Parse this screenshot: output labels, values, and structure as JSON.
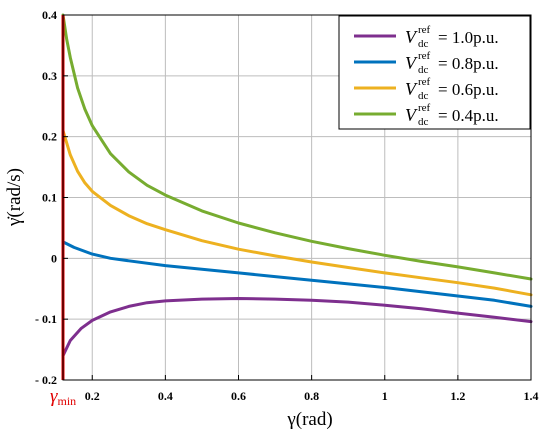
{
  "chart_data": {
    "type": "line",
    "xlabel": "γ(rad)",
    "ylabel": "γ̇(rad/s)",
    "xlim": [
      0.12,
      1.4
    ],
    "ylim": [
      -0.2,
      0.4
    ],
    "grid": true,
    "legend_position": "top-right",
    "x_ticks": [
      {
        "value": 0.2,
        "label": "0.2"
      },
      {
        "value": 0.4,
        "label": "0.4"
      },
      {
        "value": 0.6,
        "label": "0.6"
      },
      {
        "value": 0.8,
        "label": "0.8"
      },
      {
        "value": 1.0,
        "label": "1"
      },
      {
        "value": 1.2,
        "label": "1.2"
      },
      {
        "value": 1.4,
        "label": "1.4"
      }
    ],
    "y_ticks": [
      {
        "value": -0.2,
        "label": "- 0.2"
      },
      {
        "value": -0.1,
        "label": "- 0.1"
      },
      {
        "value": 0.0,
        "label": "0"
      },
      {
        "value": 0.1,
        "label": "0.1"
      },
      {
        "value": 0.2,
        "label": "0.2"
      },
      {
        "value": 0.3,
        "label": "0.3"
      },
      {
        "value": 0.4,
        "label": "0.4"
      }
    ],
    "gamma_min": {
      "value": 0.12,
      "symbol": "γ",
      "subscript": "min",
      "color": "#e00000"
    },
    "series": [
      {
        "name": "1.0p.u.",
        "legend_var": "V",
        "legend_sub": "dc",
        "legend_sup": "ref",
        "legend_eq": "= 1.0p.u.",
        "color": "#7e2f8e",
        "x": [
          0.12,
          0.14,
          0.17,
          0.2,
          0.25,
          0.3,
          0.35,
          0.4,
          0.5,
          0.6,
          0.7,
          0.8,
          0.9,
          1.0,
          1.1,
          1.2,
          1.3,
          1.4
        ],
        "y": [
          -0.16,
          -0.135,
          -0.115,
          -0.102,
          -0.088,
          -0.079,
          -0.073,
          -0.07,
          -0.067,
          -0.066,
          -0.067,
          -0.069,
          -0.072,
          -0.077,
          -0.083,
          -0.09,
          -0.097,
          -0.104
        ]
      },
      {
        "name": "0.8p.u.",
        "legend_var": "V",
        "legend_sub": "dc",
        "legend_sup": "ref",
        "legend_eq": "= 0.8p.u.",
        "color": "#0072bd",
        "x": [
          0.12,
          0.15,
          0.2,
          0.25,
          0.3,
          0.4,
          0.5,
          0.6,
          0.7,
          0.8,
          0.9,
          1.0,
          1.1,
          1.2,
          1.3,
          1.4
        ],
        "y": [
          0.027,
          0.018,
          0.007,
          0.0,
          -0.004,
          -0.012,
          -0.018,
          -0.024,
          -0.03,
          -0.036,
          -0.042,
          -0.048,
          -0.055,
          -0.062,
          -0.069,
          -0.079
        ]
      },
      {
        "name": "0.6p.u.",
        "legend_var": "V",
        "legend_sub": "dc",
        "legend_sup": "ref",
        "legend_eq": "= 0.6p.u.",
        "color": "#edb120",
        "x": [
          0.12,
          0.14,
          0.16,
          0.18,
          0.2,
          0.25,
          0.3,
          0.35,
          0.4,
          0.5,
          0.6,
          0.7,
          0.8,
          0.9,
          1.0,
          1.1,
          1.2,
          1.3,
          1.4
        ],
        "y": [
          0.21,
          0.17,
          0.143,
          0.124,
          0.11,
          0.087,
          0.07,
          0.057,
          0.047,
          0.029,
          0.015,
          0.004,
          -0.006,
          -0.015,
          -0.024,
          -0.032,
          -0.04,
          -0.049,
          -0.06
        ]
      },
      {
        "name": "0.4p.u.",
        "legend_var": "V",
        "legend_sub": "dc",
        "legend_sup": "ref",
        "legend_eq": "= 0.4p.u.",
        "color": "#77ac30",
        "x": [
          0.12,
          0.13,
          0.14,
          0.16,
          0.18,
          0.2,
          0.25,
          0.3,
          0.35,
          0.4,
          0.5,
          0.6,
          0.7,
          0.8,
          0.9,
          1.0,
          1.1,
          1.2,
          1.3,
          1.4
        ],
        "y": [
          0.4,
          0.36,
          0.33,
          0.28,
          0.245,
          0.218,
          0.172,
          0.142,
          0.12,
          0.104,
          0.078,
          0.058,
          0.042,
          0.028,
          0.016,
          0.005,
          -0.005,
          -0.014,
          -0.024,
          -0.034
        ]
      }
    ]
  }
}
